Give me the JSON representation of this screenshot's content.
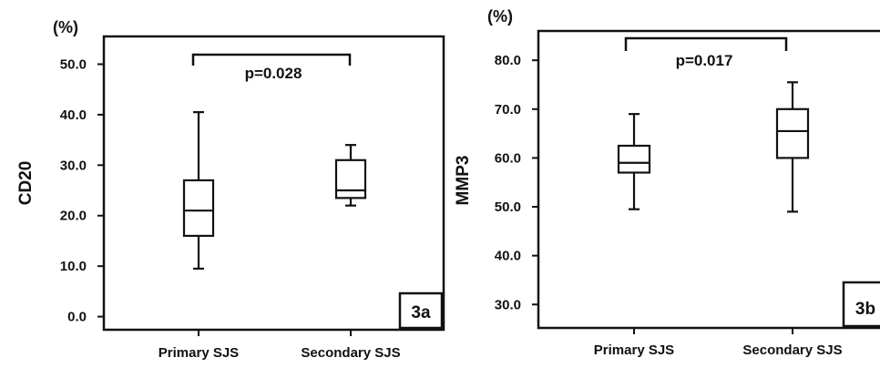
{
  "chart_data": [
    {
      "type": "box",
      "panel": "3a",
      "ylabel": "CD20",
      "unit": "(%)",
      "ylim": [
        0,
        50
      ],
      "yticks": [
        "0.0",
        "10.0",
        "20.0",
        "30.0",
        "40.0",
        "50.0"
      ],
      "categories": [
        "Primary SJS",
        "Secondary SJS"
      ],
      "boxes": [
        {
          "category": "Primary SJS",
          "min": 9.5,
          "q1": 16,
          "median": 21,
          "q3": 27,
          "max": 40.5
        },
        {
          "category": "Secondary SJS",
          "min": 22,
          "q1": 23.5,
          "median": 25,
          "q3": 31,
          "max": 34
        }
      ],
      "annotation": "p=0.028",
      "grid": false
    },
    {
      "type": "box",
      "panel": "3b",
      "ylabel": "MMP3",
      "unit": "(%)",
      "ylim": [
        27,
        83
      ],
      "yticks": [
        "30.0",
        "40.0",
        "50.0",
        "60.0",
        "70.0",
        "80.0"
      ],
      "categories": [
        "Primary SJS",
        "Secondary SJS"
      ],
      "boxes": [
        {
          "category": "Primary SJS",
          "min": 49.5,
          "q1": 57,
          "median": 59,
          "q3": 62.5,
          "max": 69
        },
        {
          "category": "Secondary SJS",
          "min": 49,
          "q1": 60,
          "median": 65.5,
          "q3": 70,
          "max": 75.5
        }
      ],
      "annotation": "p=0.017",
      "grid": false
    }
  ]
}
